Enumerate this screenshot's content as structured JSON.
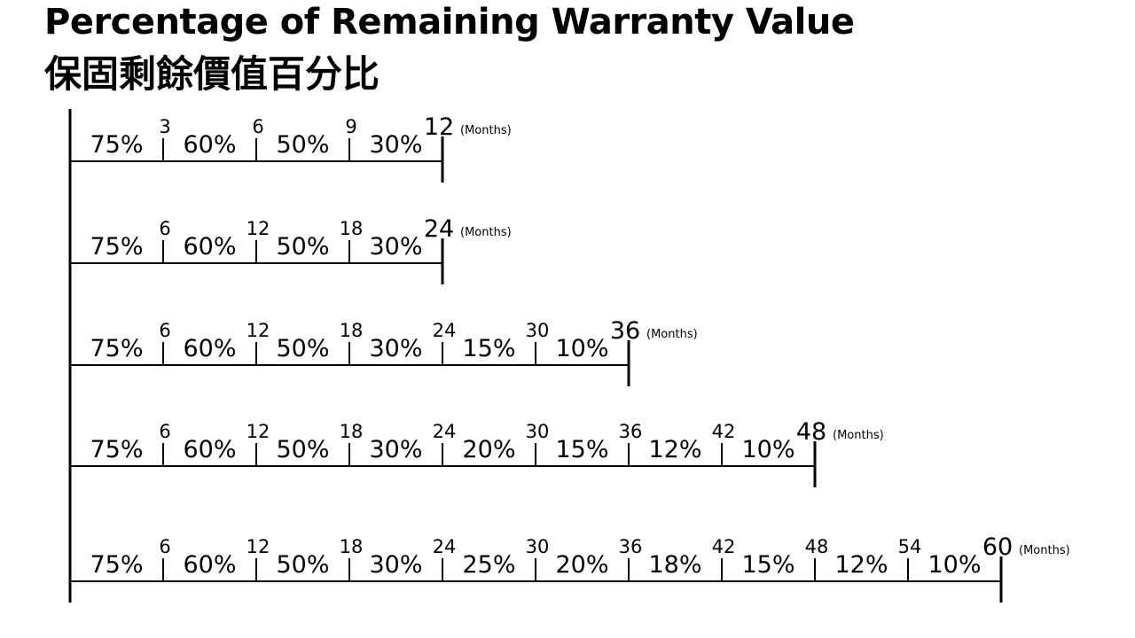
{
  "title": "Percentage of Remaining Warranty Value",
  "subtitle": "保固剩餘價值百分比",
  "unit_label": "(Months)",
  "timelines": [
    {
      "total_months": 12,
      "ticks": [
        3,
        6,
        9
      ],
      "percents": [
        "75%",
        "60%",
        "50%",
        "30%"
      ]
    },
    {
      "total_months": 24,
      "ticks": [
        6,
        12,
        18
      ],
      "percents": [
        "75%",
        "60%",
        "50%",
        "30%"
      ]
    },
    {
      "total_months": 36,
      "ticks": [
        6,
        12,
        18,
        24,
        30
      ],
      "percents": [
        "75%",
        "60%",
        "50%",
        "30%",
        "15%",
        "10%"
      ]
    },
    {
      "total_months": 48,
      "ticks": [
        6,
        12,
        18,
        24,
        30,
        36,
        42
      ],
      "percents": [
        "75%",
        "60%",
        "50%",
        "30%",
        "20%",
        "15%",
        "12%",
        "10%"
      ]
    },
    {
      "total_months": 60,
      "ticks": [
        6,
        12,
        18,
        24,
        30,
        36,
        42,
        48,
        54
      ],
      "percents": [
        "75%",
        "60%",
        "50%",
        "30%",
        "25%",
        "20%",
        "18%",
        "15%",
        "12%",
        "10%"
      ]
    }
  ]
}
